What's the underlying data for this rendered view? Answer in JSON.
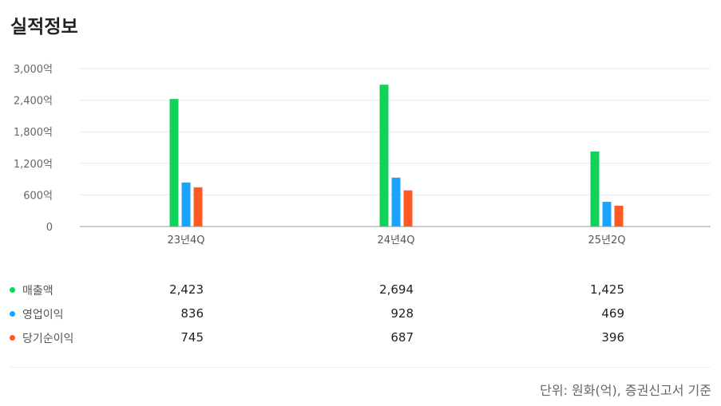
{
  "title": "실적정보",
  "chart_data": {
    "type": "bar",
    "categories": [
      "23년4Q",
      "24년4Q",
      "25년2Q"
    ],
    "series": [
      {
        "name": "매출액",
        "color": "#12d35a",
        "values": [
          2423,
          2694,
          1425
        ],
        "display": [
          "2,423",
          "2,694",
          "1,425"
        ]
      },
      {
        "name": "영업이익",
        "color": "#1aa3ff",
        "values": [
          836,
          928,
          469
        ],
        "display": [
          "836",
          "928",
          "469"
        ]
      },
      {
        "name": "당기순이익",
        "color": "#ff5a23",
        "values": [
          745,
          687,
          396
        ],
        "display": [
          "745",
          "687",
          "396"
        ]
      }
    ],
    "ylim": [
      0,
      3000
    ],
    "yticks": [
      {
        "value": 0,
        "label": "0"
      },
      {
        "value": 600,
        "label": "600억"
      },
      {
        "value": 1200,
        "label": "1,200억"
      },
      {
        "value": 1800,
        "label": "1,800억"
      },
      {
        "value": 2400,
        "label": "2,400억"
      },
      {
        "value": 3000,
        "label": "3,000억"
      }
    ],
    "grid": true,
    "legend": "bottom-left table"
  },
  "footnote": "단위: 원화(억), 증권신고서 기준"
}
